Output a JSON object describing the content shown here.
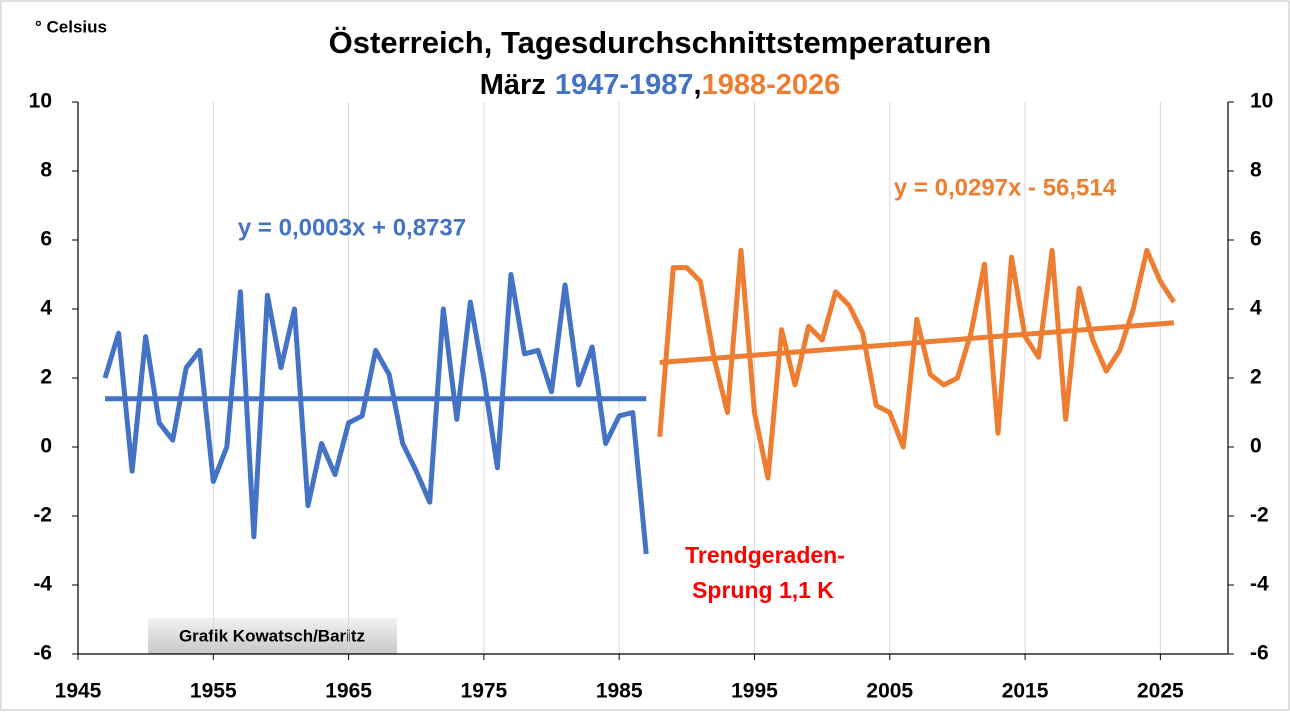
{
  "chart_data": {
    "type": "line",
    "title": "Österreich, Tagesdurchschnittstemperaturen",
    "subtitle_parts": [
      "März",
      "1947-1987",
      ",",
      "1988-2026"
    ],
    "y_label": "° Celsius",
    "xlim": [
      1945,
      2030
    ],
    "xticks": [
      1945,
      1955,
      1965,
      1975,
      1985,
      1995,
      2005,
      2015,
      2025
    ],
    "ylim": [
      -6,
      10
    ],
    "yticks": [
      -6,
      -4,
      -2,
      0,
      2,
      4,
      6,
      8,
      10
    ],
    "y2lim": [
      -6,
      10
    ],
    "y2ticks": [
      -6,
      -4,
      -2,
      0,
      2,
      4,
      6,
      8,
      10
    ],
    "grid": true,
    "series": [
      {
        "color": "#4472c4",
        "x": [
          1947,
          1948,
          1949,
          1950,
          1951,
          1952,
          1953,
          1954,
          1955,
          1956,
          1957,
          1958,
          1959,
          1960,
          1961,
          1962,
          1963,
          1964,
          1965,
          1966,
          1967,
          1968,
          1969,
          1970,
          1971,
          1972,
          1973,
          1974,
          1975,
          1976,
          1977,
          1978,
          1979,
          1980,
          1981,
          1982,
          1983,
          1984,
          1985,
          1986,
          1987
        ],
        "values": [
          2.0,
          3.3,
          -0.7,
          3.2,
          0.7,
          0.2,
          2.3,
          2.8,
          -1.0,
          0.0,
          4.5,
          -2.6,
          4.4,
          2.3,
          4.0,
          -1.7,
          0.1,
          -0.8,
          0.7,
          0.9,
          2.8,
          2.1,
          0.1,
          -0.7,
          -1.6,
          4.0,
          0.8,
          4.2,
          2.0,
          -0.6,
          5.0,
          2.7,
          2.8,
          1.6,
          4.7,
          1.8,
          2.9,
          0.1,
          0.9,
          1.0,
          -3.1
        ],
        "trend_x": [
          1947,
          1987
        ],
        "trend_values": [
          1.4,
          1.4
        ],
        "equation": "y = 0,0003x + 0,8737"
      },
      {
        "color": "#ed7d31",
        "x": [
          1988,
          1989,
          1990,
          1991,
          1992,
          1993,
          1994,
          1995,
          1996,
          1997,
          1998,
          1999,
          2000,
          2001,
          2002,
          2003,
          2004,
          2005,
          2006,
          2007,
          2008,
          2009,
          2010,
          2011,
          2012,
          2013,
          2014,
          2015,
          2016,
          2017,
          2018,
          2019,
          2020,
          2021,
          2022,
          2023,
          2024,
          2025,
          2026
        ],
        "values": [
          0.3,
          5.2,
          5.2,
          4.8,
          2.6,
          1.0,
          5.7,
          1.0,
          -0.9,
          3.4,
          1.8,
          3.5,
          3.1,
          4.5,
          4.1,
          3.3,
          1.2,
          1.0,
          0.0,
          3.7,
          2.1,
          1.8,
          2.0,
          3.3,
          5.3,
          0.4,
          5.5,
          3.2,
          2.6,
          5.7,
          0.8,
          4.6,
          3.1,
          2.2,
          2.8,
          4.0,
          5.7,
          4.8,
          4.2
        ],
        "trend_x": [
          1988,
          2026
        ],
        "trend_values": [
          2.45,
          3.6
        ],
        "equation": "y = 0,0297x - 56,514"
      }
    ],
    "annotations": [
      "Trendgeraden-",
      "Sprung 1,1 K"
    ],
    "credit": "Grafik Kowatsch/Baritz"
  }
}
